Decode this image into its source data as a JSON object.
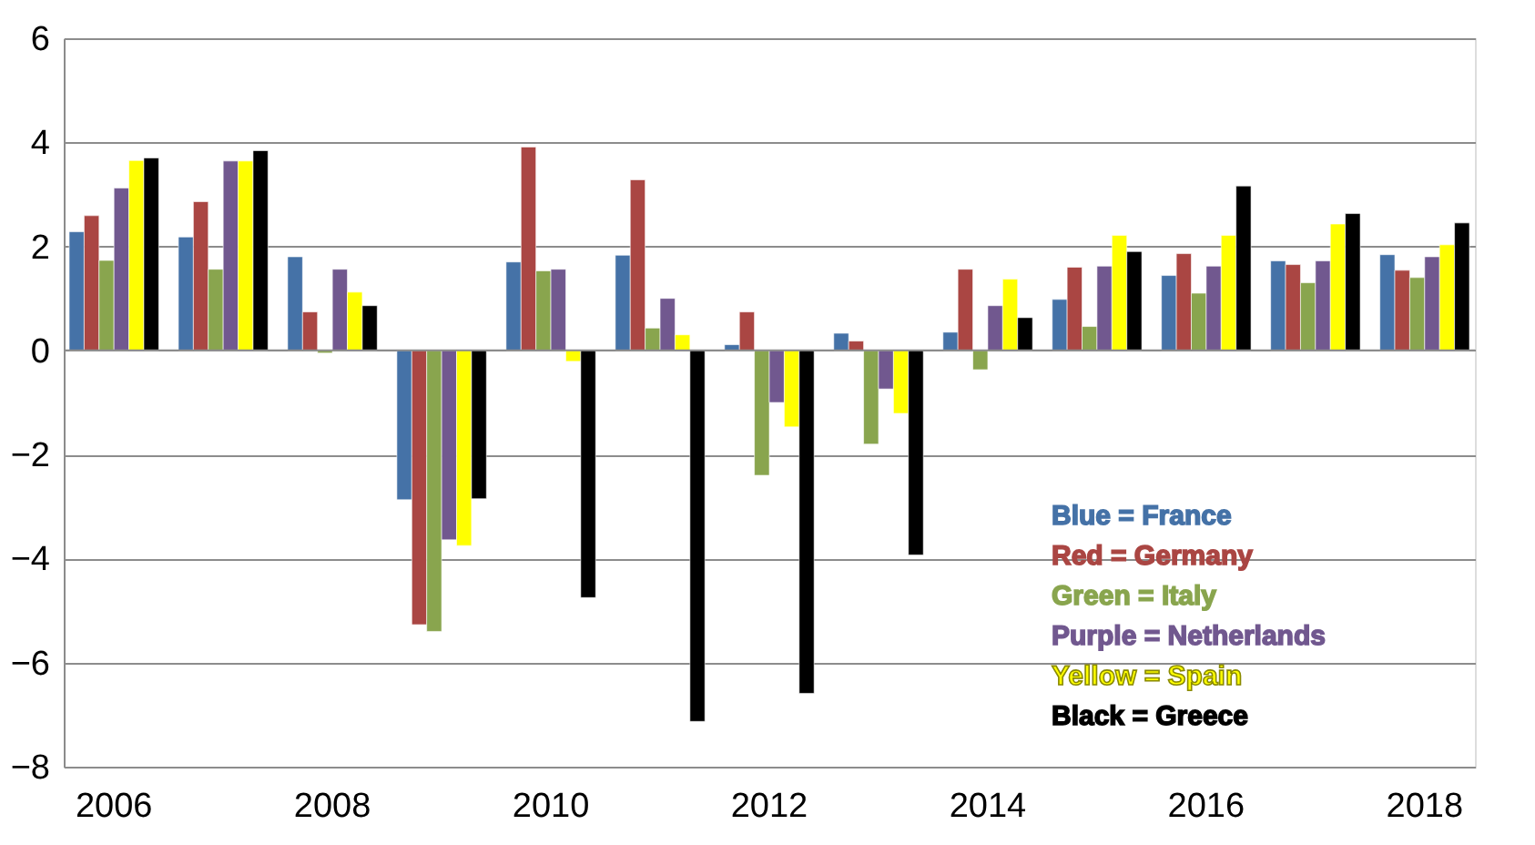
{
  "chart_data": {
    "type": "bar",
    "categories": [
      "2006",
      null,
      "2008",
      null,
      "2010",
      null,
      "2012",
      null,
      "2014",
      null,
      "2016",
      null,
      "2018"
    ],
    "series": [
      {
        "name": "Blue = France",
        "color": "#4572a7",
        "values": [
          2.28,
          2.18,
          1.8,
          -2.87,
          1.7,
          1.83,
          0.11,
          0.33,
          0.35,
          0.98,
          1.44,
          1.72,
          1.84
        ]
      },
      {
        "name": "Red = Germany",
        "color": "#aa4643",
        "values": [
          2.59,
          2.86,
          0.74,
          -5.27,
          3.91,
          3.28,
          0.74,
          0.18,
          1.56,
          1.6,
          1.86,
          1.65,
          1.54
        ]
      },
      {
        "name": "Green = Italy",
        "color": "#89a54e",
        "values": [
          1.73,
          1.56,
          -0.05,
          -5.4,
          1.53,
          0.43,
          -2.4,
          -1.8,
          -0.37,
          0.46,
          1.1,
          1.3,
          1.4
        ]
      },
      {
        "name": "Purple = Netherlands",
        "color": "#71588f",
        "values": [
          3.12,
          3.64,
          1.56,
          -3.64,
          1.56,
          1.0,
          -1.0,
          -0.74,
          0.86,
          1.62,
          1.62,
          1.72,
          1.8
        ]
      },
      {
        "name": "Yellow = Spain",
        "color": "#ffff00",
        "values": [
          3.65,
          3.64,
          1.12,
          -3.75,
          -0.21,
          0.3,
          -1.47,
          -1.21,
          1.37,
          2.21,
          2.21,
          2.43,
          2.03
        ]
      },
      {
        "name": "Black = Greece",
        "color": "#000000",
        "values": [
          3.7,
          3.84,
          0.86,
          -2.85,
          -4.75,
          -7.13,
          -6.59,
          -3.93,
          0.63,
          1.9,
          3.16,
          2.63,
          2.45
        ]
      }
    ],
    "ylim": [
      -8,
      6
    ],
    "yticks": [
      -8,
      -6,
      -4,
      -2,
      0,
      2,
      4,
      6
    ],
    "grid": "y",
    "legend": "bottom right"
  }
}
